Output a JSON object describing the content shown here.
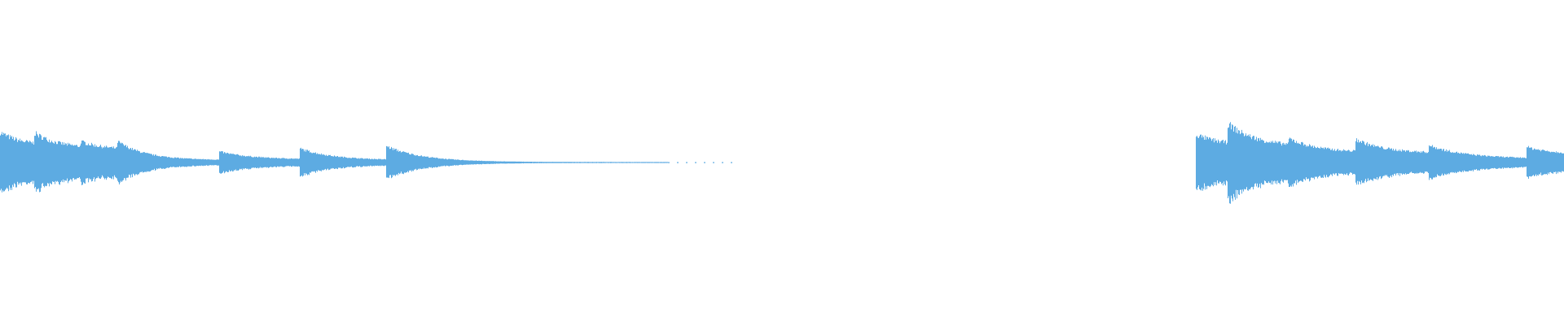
{
  "waveform": {
    "color": "#5dabe2",
    "background": "#ffffff"
  }
}
